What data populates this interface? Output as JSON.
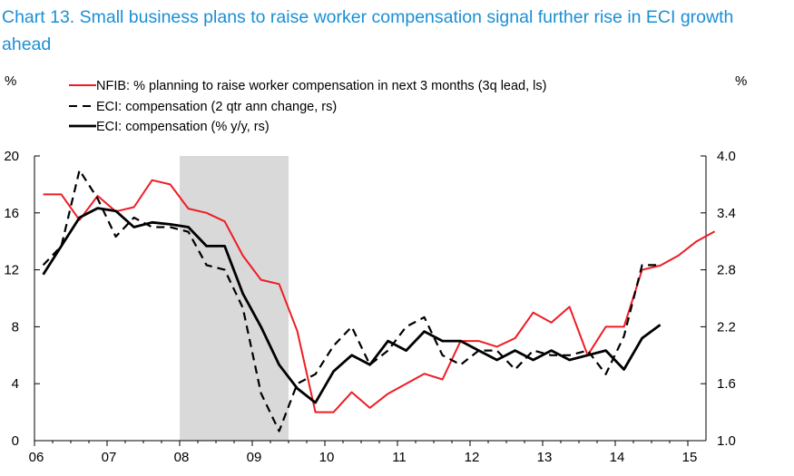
{
  "chart_data": {
    "type": "line",
    "title": "Chart 13. Small business plans to raise worker compensation signal further rise in ECI growth ahead",
    "left_unit": "%",
    "right_unit": "%",
    "ylim_left": [
      0,
      20
    ],
    "ylim_right": [
      1.0,
      4.0
    ],
    "yticks_left": [
      "0",
      "4",
      "8",
      "12",
      "16",
      "20"
    ],
    "yticks_right": [
      "1.0",
      "1.6",
      "2.2",
      "2.8",
      "3.4",
      "4.0"
    ],
    "xlim": [
      2006,
      2015.25
    ],
    "xticks": [
      {
        "year": 2006,
        "label": "06"
      },
      {
        "year": 2007,
        "label": "07"
      },
      {
        "year": 2008,
        "label": "08"
      },
      {
        "year": 2009,
        "label": "09"
      },
      {
        "year": 2010,
        "label": "10"
      },
      {
        "year": 2011,
        "label": "11"
      },
      {
        "year": 2012,
        "label": "12"
      },
      {
        "year": 2013,
        "label": "13"
      },
      {
        "year": 2014,
        "label": "14"
      },
      {
        "year": 2015,
        "label": "15"
      }
    ],
    "recession": [
      2008.0,
      2009.5
    ],
    "legend_position": "top",
    "series": [
      {
        "name": "NFIB: % planning to raise worker compensation in next 3 months (3q lead, ls)",
        "axis": "left",
        "color": "#ee1c25",
        "dash": "solid",
        "x": [
          2006.12,
          2006.37,
          2006.62,
          2006.87,
          2007.12,
          2007.37,
          2007.62,
          2007.87,
          2008.12,
          2008.37,
          2008.62,
          2008.87,
          2009.12,
          2009.37,
          2009.62,
          2009.87,
          2010.12,
          2010.37,
          2010.62,
          2010.87,
          2011.12,
          2011.37,
          2011.62,
          2011.87,
          2012.12,
          2012.37,
          2012.62,
          2012.87,
          2013.12,
          2013.37,
          2013.62,
          2013.87,
          2014.12,
          2014.37,
          2014.62,
          2014.87,
          2015.12,
          2015.37
        ],
        "values": [
          17.3,
          17.3,
          15.5,
          17.2,
          16.1,
          16.4,
          18.3,
          18.0,
          16.3,
          16.0,
          15.4,
          13.0,
          11.3,
          11.0,
          7.7,
          2.0,
          2.0,
          3.4,
          2.3,
          3.3,
          4.0,
          4.7,
          4.3,
          7.0,
          7.0,
          6.6,
          7.2,
          9.0,
          8.3,
          9.4,
          6.0,
          8.0,
          8.0,
          12.0,
          12.3,
          13.0,
          14.0,
          14.7
        ]
      },
      {
        "name": "ECI: compensation (2 qtr ann change, rs)",
        "axis": "right",
        "color": "#000000",
        "dash": "dashed",
        "x": [
          2006.12,
          2006.37,
          2006.62,
          2006.87,
          2007.12,
          2007.37,
          2007.62,
          2007.87,
          2008.12,
          2008.37,
          2008.62,
          2008.87,
          2009.12,
          2009.37,
          2009.62,
          2009.87,
          2010.12,
          2010.37,
          2010.62,
          2010.87,
          2011.12,
          2011.37,
          2011.62,
          2011.87,
          2012.12,
          2012.37,
          2012.62,
          2012.87,
          2013.12,
          2013.37,
          2013.62,
          2013.87,
          2014.12,
          2014.37,
          2014.62
        ],
        "values": [
          2.85,
          3.05,
          3.85,
          3.55,
          3.15,
          3.35,
          3.25,
          3.25,
          3.2,
          2.85,
          2.8,
          2.4,
          1.5,
          1.1,
          1.6,
          1.7,
          2.0,
          2.2,
          1.8,
          1.95,
          2.2,
          2.3,
          1.9,
          1.8,
          1.95,
          1.95,
          1.75,
          1.95,
          1.9,
          1.9,
          1.95,
          1.7,
          2.1,
          2.85,
          2.85
        ]
      },
      {
        "name": "ECI: compensation (% y/y, rs)",
        "axis": "right",
        "color": "#000000",
        "dash": "solid",
        "x": [
          2006.12,
          2006.37,
          2006.62,
          2006.87,
          2007.12,
          2007.37,
          2007.62,
          2007.87,
          2008.12,
          2008.37,
          2008.62,
          2008.87,
          2009.12,
          2009.37,
          2009.62,
          2009.87,
          2010.12,
          2010.37,
          2010.62,
          2010.87,
          2011.12,
          2011.37,
          2011.62,
          2011.87,
          2012.12,
          2012.37,
          2012.62,
          2012.87,
          2013.12,
          2013.37,
          2013.62,
          2013.87,
          2014.12,
          2014.37,
          2014.62
        ],
        "values": [
          2.75,
          3.05,
          3.35,
          3.45,
          3.42,
          3.25,
          3.3,
          3.28,
          3.25,
          3.05,
          3.05,
          2.55,
          2.2,
          1.8,
          1.55,
          1.4,
          1.73,
          1.9,
          1.8,
          2.05,
          1.95,
          2.15,
          2.05,
          2.05,
          1.95,
          1.85,
          1.95,
          1.85,
          1.95,
          1.85,
          1.9,
          1.95,
          1.75,
          2.08,
          2.22
        ]
      }
    ]
  }
}
